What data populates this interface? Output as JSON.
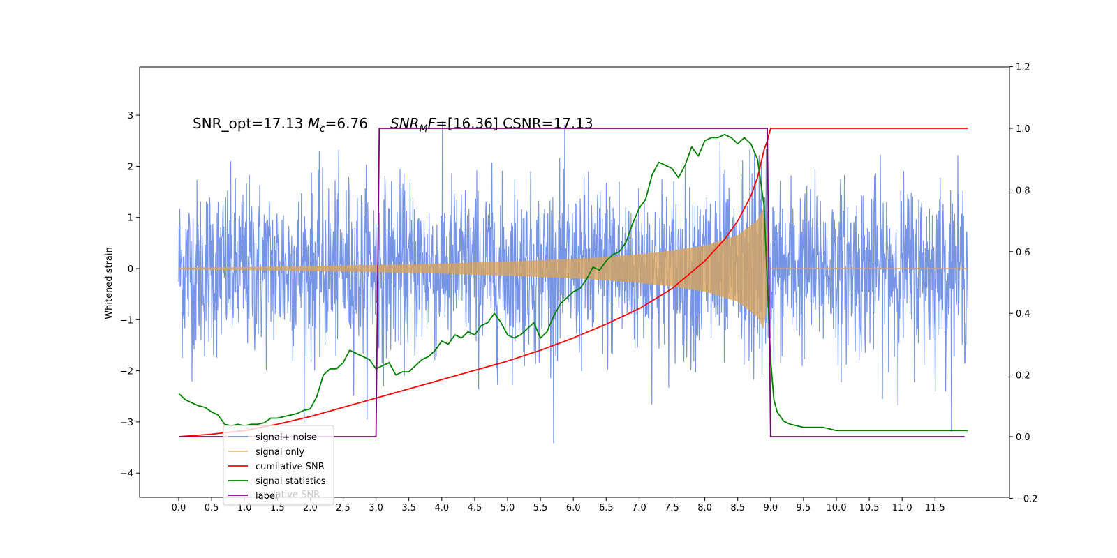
{
  "chart_data": {
    "type": "line",
    "annotation": {
      "part1": "SNR_opt=17.13 ",
      "mc_symbol": "M",
      "mc_sub": "c",
      "part2": "=6.76",
      "snr_symbol": "SNR",
      "snr_sub": "M",
      "snr_tail": "F",
      "part3": "=[16.36] CSNR=17.13"
    },
    "ylabel_left": "Whitened strain",
    "xlabel": "",
    "title": "",
    "x_range": [
      -0.6,
      12.6
    ],
    "ylim_left": [
      -4.5,
      3.95
    ],
    "ylim_right": [
      -0.2,
      1.2
    ],
    "x_ticks": [
      0.0,
      0.5,
      1.0,
      1.5,
      2.0,
      2.5,
      3.0,
      3.5,
      4.0,
      4.5,
      5.0,
      5.5,
      6.0,
      6.5,
      7.0,
      7.5,
      8.0,
      8.5,
      9.0,
      9.5,
      10.0,
      10.5,
      11.0,
      11.5
    ],
    "x_tick_labels": [
      "0.0",
      "0.5",
      "1.0",
      "1.5",
      "2.0",
      "2.5",
      "3.0",
      "3.5",
      "4.0",
      "4.5",
      "5.0",
      "5.5",
      "6.0",
      "6.5",
      "7.0",
      "7.5",
      "8.0",
      "8.5",
      "9.0",
      "9.5",
      "10.0",
      "10.5",
      "11.0",
      "11.5"
    ],
    "y_left_ticks": [
      -4,
      -3,
      -2,
      -1,
      0,
      1,
      2,
      3
    ],
    "y_left_tick_labels": [
      "−4",
      "−3",
      "−2",
      "−1",
      "0",
      "1",
      "2",
      "3"
    ],
    "y_right_ticks": [
      -0.2,
      0.0,
      0.2,
      0.4,
      0.6,
      0.8,
      1.0,
      1.2
    ],
    "y_right_tick_labels": [
      "−0.2",
      "0.0",
      "0.2",
      "0.4",
      "0.6",
      "0.8",
      "1.0",
      "1.2"
    ],
    "colors": {
      "signal_noise": "#6f8fe6",
      "signal_only": "#d8a45c",
      "cumulative_snr": "#ff0000",
      "signal_statistics": "#008000",
      "label": "#800080"
    },
    "legend": {
      "placement": "lower-left",
      "entries": [
        {
          "name": "signal+ noise",
          "color": "#6f8fe6"
        },
        {
          "name": "signal only",
          "color": "#ffbf6a"
        },
        {
          "name": "cumilative SNR",
          "color": "#ff0000"
        },
        {
          "name": "signal statistics",
          "color": "#008000"
        },
        {
          "name": "label",
          "color": "#800080"
        }
      ],
      "overlap_text": "lative SNR"
    },
    "series": [
      {
        "name": "signal+ noise",
        "axis": "left",
        "kind": "noise-band",
        "x_start": 0.0,
        "x_end": 12.0,
        "envelope_typical": 2.0,
        "max_peak": 3.55,
        "min_trough": -4.1
      },
      {
        "name": "signal only",
        "axis": "left",
        "kind": "chirp-envelope",
        "x_start": 0.0,
        "x_end": 9.0,
        "amplitude_points": [
          [
            0.0,
            0.02
          ],
          [
            1.0,
            0.03
          ],
          [
            2.0,
            0.05
          ],
          [
            3.0,
            0.07
          ],
          [
            4.0,
            0.1
          ],
          [
            5.0,
            0.14
          ],
          [
            6.0,
            0.19
          ],
          [
            6.5,
            0.23
          ],
          [
            7.0,
            0.28
          ],
          [
            7.5,
            0.35
          ],
          [
            8.0,
            0.45
          ],
          [
            8.5,
            0.65
          ],
          [
            8.8,
            0.95
          ],
          [
            8.9,
            1.2
          ],
          [
            9.0,
            0.0
          ]
        ]
      },
      {
        "name": "cumilative SNR",
        "axis": "right",
        "x": [
          0.0,
          0.5,
          1.0,
          1.5,
          2.0,
          2.5,
          3.0,
          3.5,
          4.0,
          4.5,
          5.0,
          5.5,
          6.0,
          6.5,
          7.0,
          7.5,
          8.0,
          8.3,
          8.5,
          8.7,
          8.8,
          8.9,
          8.95,
          9.0,
          12.0
        ],
        "y": [
          0.0,
          0.008,
          0.02,
          0.04,
          0.065,
          0.095,
          0.125,
          0.155,
          0.185,
          0.215,
          0.245,
          0.28,
          0.32,
          0.365,
          0.415,
          0.48,
          0.57,
          0.64,
          0.7,
          0.78,
          0.84,
          0.93,
          0.96,
          1.0,
          1.0
        ]
      },
      {
        "name": "signal statistics",
        "axis": "right",
        "x": [
          0.0,
          0.1,
          0.2,
          0.3,
          0.4,
          0.5,
          0.6,
          0.7,
          0.8,
          0.9,
          1.0,
          1.1,
          1.2,
          1.3,
          1.4,
          1.5,
          1.6,
          1.7,
          1.8,
          1.9,
          2.0,
          2.1,
          2.2,
          2.3,
          2.4,
          2.5,
          2.6,
          2.7,
          2.8,
          2.9,
          3.0,
          3.1,
          3.2,
          3.3,
          3.4,
          3.5,
          3.6,
          3.7,
          3.8,
          3.9,
          4.0,
          4.1,
          4.2,
          4.3,
          4.4,
          4.5,
          4.6,
          4.7,
          4.8,
          4.9,
          5.0,
          5.1,
          5.2,
          5.3,
          5.4,
          5.5,
          5.6,
          5.7,
          5.8,
          5.9,
          6.0,
          6.1,
          6.2,
          6.3,
          6.4,
          6.5,
          6.6,
          6.7,
          6.8,
          6.9,
          7.0,
          7.1,
          7.2,
          7.3,
          7.4,
          7.5,
          7.6,
          7.7,
          7.8,
          7.9,
          8.0,
          8.1,
          8.2,
          8.3,
          8.4,
          8.5,
          8.6,
          8.7,
          8.8,
          8.9,
          8.95,
          9.0,
          9.05,
          9.1,
          9.2,
          9.3,
          9.5,
          9.8,
          10.0,
          10.5,
          11.0,
          11.5,
          12.0
        ],
        "y": [
          0.14,
          0.12,
          0.11,
          0.1,
          0.095,
          0.08,
          0.07,
          0.04,
          0.035,
          0.04,
          0.035,
          0.04,
          0.04,
          0.045,
          0.06,
          0.06,
          0.065,
          0.07,
          0.075,
          0.085,
          0.09,
          0.13,
          0.2,
          0.22,
          0.22,
          0.24,
          0.28,
          0.27,
          0.26,
          0.25,
          0.22,
          0.23,
          0.24,
          0.2,
          0.21,
          0.21,
          0.23,
          0.25,
          0.26,
          0.28,
          0.31,
          0.3,
          0.33,
          0.32,
          0.34,
          0.33,
          0.36,
          0.37,
          0.4,
          0.37,
          0.33,
          0.32,
          0.33,
          0.35,
          0.37,
          0.32,
          0.34,
          0.39,
          0.43,
          0.45,
          0.47,
          0.48,
          0.51,
          0.55,
          0.54,
          0.57,
          0.59,
          0.6,
          0.63,
          0.69,
          0.74,
          0.77,
          0.85,
          0.89,
          0.88,
          0.87,
          0.84,
          0.88,
          0.94,
          0.91,
          0.96,
          0.97,
          0.97,
          0.98,
          0.97,
          0.95,
          0.97,
          0.95,
          0.9,
          0.75,
          0.5,
          0.25,
          0.12,
          0.08,
          0.05,
          0.04,
          0.03,
          0.03,
          0.02,
          0.02,
          0.02,
          0.02,
          0.02
        ]
      },
      {
        "name": "label",
        "axis": "right",
        "x": [
          0.0,
          3.0,
          3.05,
          8.9,
          8.95,
          9.0,
          11.95
        ],
        "y": [
          0.0,
          0.0,
          1.0,
          1.0,
          1.0,
          0.0,
          0.0
        ]
      }
    ]
  }
}
